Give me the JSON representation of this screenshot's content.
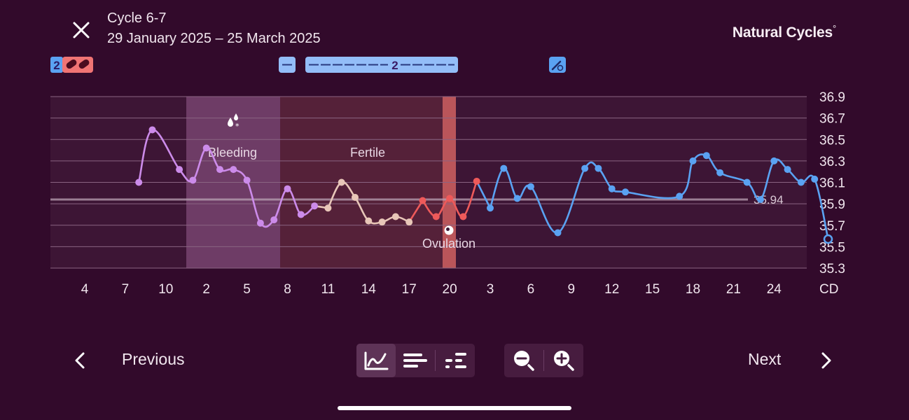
{
  "header": {
    "title": "Cycle 6-7",
    "date_range": "29 January 2025 – 25 March 2025",
    "logo": "Natural Cycles",
    "logo_mark": "°"
  },
  "markers": {
    "pill_count": "2",
    "bar_count": "2"
  },
  "chart": {
    "bleeding_label": "Bleeding",
    "fertile_label": "Fertile",
    "ovulation_label": "Ovulation",
    "coverline_label": "35.94",
    "x_unit_label": "CD",
    "y_ticks": [
      "36.9",
      "36.7",
      "36.5",
      "36.3",
      "36.1",
      "35.9",
      "35.7",
      "35.5",
      "35.3"
    ],
    "x_ticks": [
      "4",
      "7",
      "10",
      "2",
      "5",
      "8",
      "11",
      "14",
      "17",
      "20",
      "3",
      "6",
      "9",
      "12",
      "15",
      "18",
      "21",
      "24"
    ]
  },
  "chart_data": {
    "type": "line",
    "ylabel": "",
    "xlabel": "CD",
    "ylim": [
      35.3,
      36.9
    ],
    "coverline": 35.94,
    "x_ticks": [
      "4",
      "7",
      "10",
      "2",
      "5",
      "8",
      "11",
      "14",
      "17",
      "20",
      "3",
      "6",
      "9",
      "12",
      "15",
      "18",
      "21",
      "24"
    ],
    "series": [
      {
        "color": "#cc8bea",
        "points": [
          [
            5,
            36.1
          ],
          [
            6,
            36.59
          ],
          [
            8,
            36.22
          ],
          [
            9,
            36.12
          ],
          [
            10,
            36.42
          ],
          [
            11,
            36.22
          ],
          [
            12,
            36.22
          ],
          [
            13,
            36.12
          ],
          [
            14,
            35.72
          ],
          [
            15,
            35.75
          ],
          [
            16,
            36.04
          ],
          [
            17,
            35.8
          ],
          [
            18,
            35.88
          ]
        ]
      },
      {
        "color": "#e8c6b8",
        "points": [
          [
            19,
            35.86
          ],
          [
            20,
            36.1
          ],
          [
            21,
            35.96
          ],
          [
            22,
            35.74
          ],
          [
            23,
            35.73
          ],
          [
            24,
            35.78
          ],
          [
            25,
            35.73
          ]
        ]
      },
      {
        "color": "#ee5a5a",
        "points": [
          [
            26,
            35.93
          ],
          [
            27,
            35.78
          ],
          [
            28,
            35.95
          ],
          [
            29,
            35.78
          ],
          [
            30,
            36.11
          ]
        ]
      },
      {
        "color": "#5aa2f2",
        "points": [
          [
            31,
            35.86
          ],
          [
            32,
            36.23
          ],
          [
            33,
            35.95
          ],
          [
            34,
            36.06
          ],
          [
            36,
            35.63
          ],
          [
            38,
            36.23
          ],
          [
            39,
            36.23
          ],
          [
            40,
            36.04
          ],
          [
            41,
            36.01
          ],
          [
            45,
            35.97
          ],
          [
            46,
            36.3
          ],
          [
            47,
            36.35
          ],
          [
            48,
            36.19
          ],
          [
            50,
            36.1
          ],
          [
            51,
            35.94
          ],
          [
            52,
            36.3
          ],
          [
            53,
            36.22
          ],
          [
            54,
            36.1
          ],
          [
            55,
            36.13
          ],
          [
            56,
            35.57
          ]
        ]
      }
    ]
  },
  "colors": {
    "background": "#320a2b",
    "follicular": "#cc8bea",
    "transition": "#e8c6b8",
    "fertile": "#ee5a5a",
    "luteal": "#5aa2f2"
  },
  "footer": {
    "previous_label": "Previous",
    "next_label": "Next"
  },
  "icons": {
    "close": "close-icon",
    "prev": "chevron-left-icon",
    "next": "chevron-right-icon",
    "view_graph": "graph-view-icon",
    "view_list": "list-view-icon",
    "view_scatter": "scatter-view-icon",
    "zoom_out": "zoom-out-icon",
    "zoom_in": "zoom-in-icon"
  }
}
